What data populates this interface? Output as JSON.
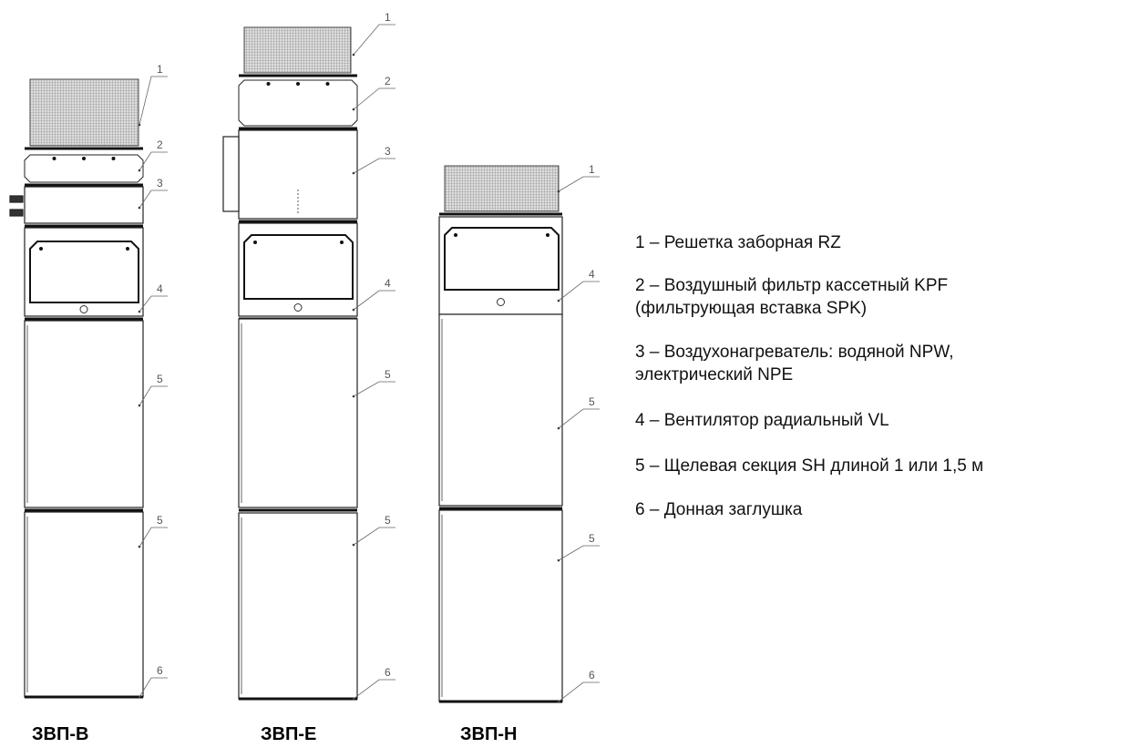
{
  "units": [
    {
      "name": "ЗВП-В",
      "callouts": [
        "1",
        "2",
        "3",
        "4",
        "5",
        "5",
        "6"
      ]
    },
    {
      "name": "ЗВП-Е",
      "callouts": [
        "1",
        "2",
        "3",
        "4",
        "5",
        "5",
        "6"
      ]
    },
    {
      "name": "ЗВП-Н",
      "callouts": [
        "1",
        "4",
        "5",
        "5",
        "6"
      ]
    }
  ],
  "legend": {
    "items": [
      {
        "lines": [
          "1 – Решетка заборная RZ"
        ]
      },
      {
        "lines": [
          "2 – Воздушный фильтр кассетный KPF",
          "(фильтрующая вставка SPK)"
        ]
      },
      {
        "lines": [
          "3 – Воздухонагреватель: водяной NPW,",
          "электрический NPE"
        ]
      },
      {
        "lines": [
          "4 – Вентилятор радиальный VL"
        ]
      },
      {
        "lines": [
          "5 – Щелевая секция SH длиной 1 или 1,5 м"
        ]
      },
      {
        "lines": [
          "6 – Донная заглушка"
        ]
      }
    ]
  }
}
